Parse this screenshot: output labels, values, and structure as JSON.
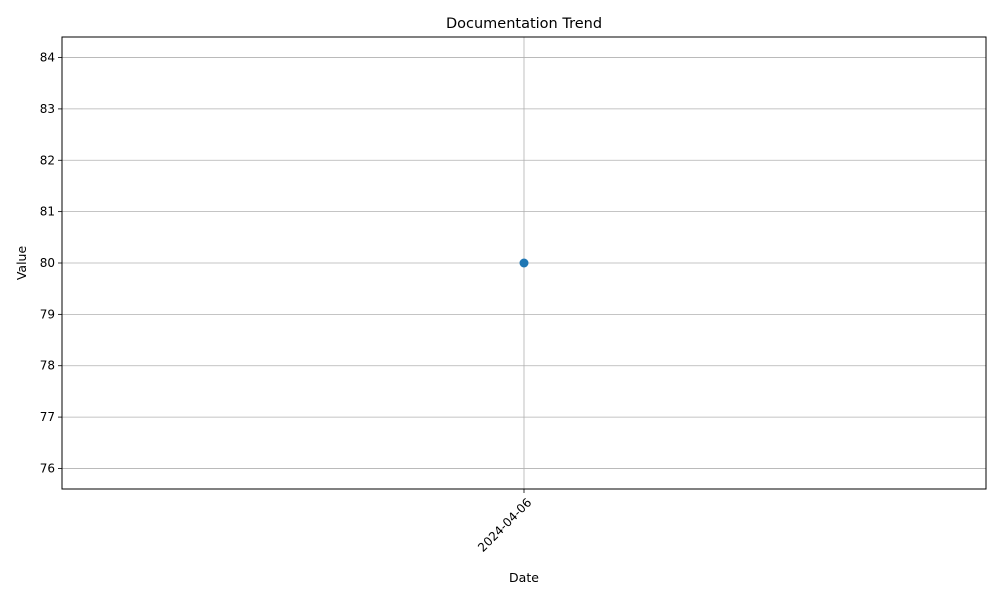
{
  "chart_data": {
    "type": "line",
    "title": "Documentation Trend",
    "xlabel": "Date",
    "ylabel": "Value",
    "x": [
      "2024-04-06"
    ],
    "series": [
      {
        "values": [
          80
        ],
        "color": "#1f77b4",
        "marker": "circle"
      }
    ],
    "ylim": [
      75.6,
      84.4
    ],
    "yticks": [
      76,
      77,
      78,
      79,
      80,
      81,
      82,
      83,
      84
    ],
    "xtick_labels": [
      "2024-04-06"
    ],
    "xtick_rotation": 45,
    "grid": true,
    "legend": "none"
  }
}
